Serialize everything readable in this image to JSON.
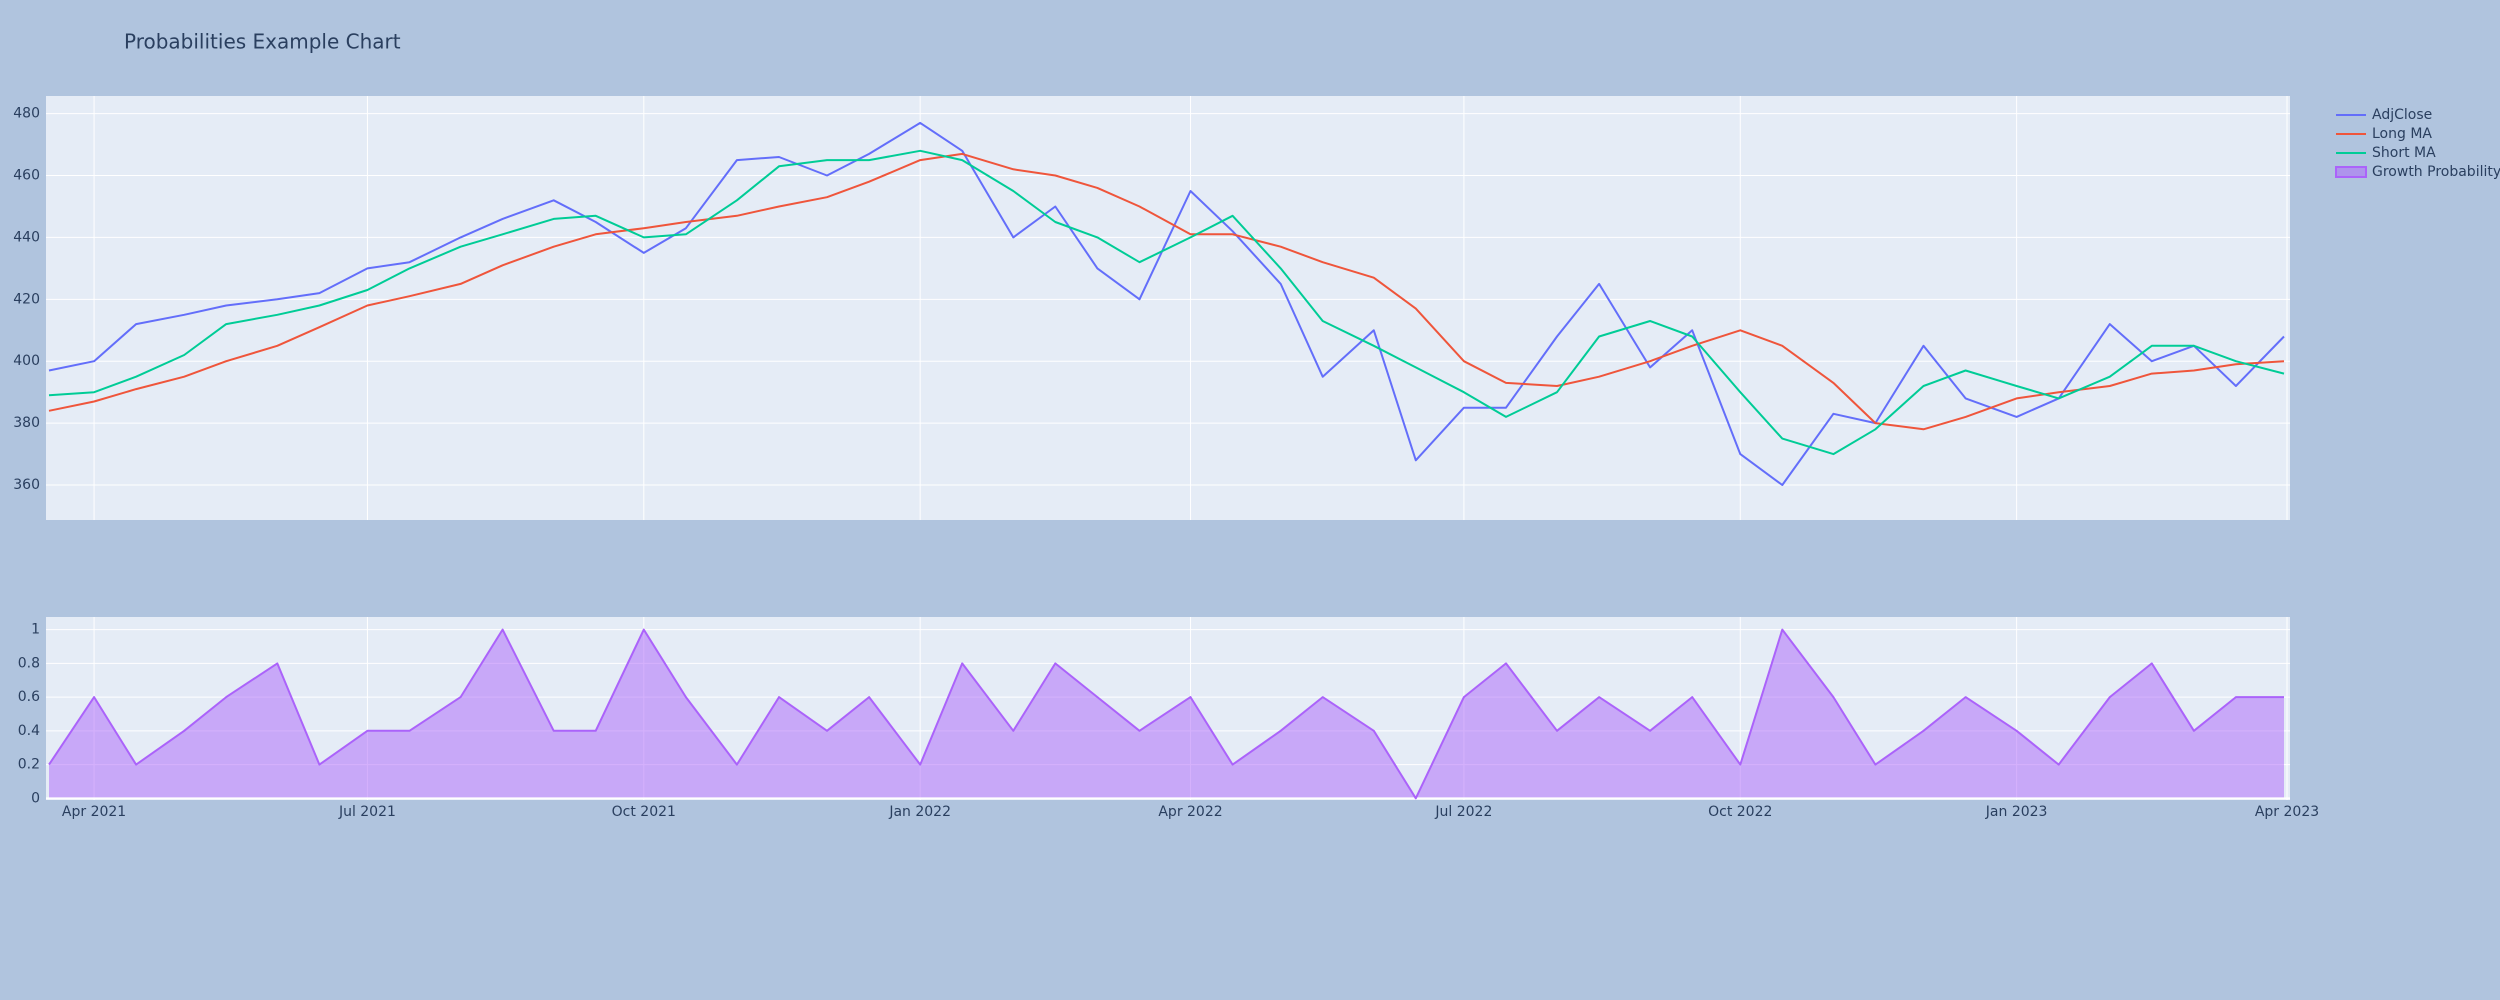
{
  "chart_data": [
    {
      "type": "line",
      "title": "Probabilities Example Chart",
      "x": [
        "2021-03-17",
        "2021-04-01",
        "2021-04-15",
        "2021-05-01",
        "2021-05-15",
        "2021-06-01",
        "2021-06-15",
        "2021-07-01",
        "2021-07-15",
        "2021-08-01",
        "2021-08-15",
        "2021-09-01",
        "2021-09-15",
        "2021-10-01",
        "2021-10-15",
        "2021-11-01",
        "2021-11-15",
        "2021-12-01",
        "2021-12-15",
        "2022-01-01",
        "2022-01-15",
        "2022-02-01",
        "2022-02-15",
        "2022-03-01",
        "2022-03-15",
        "2022-04-01",
        "2022-04-15",
        "2022-05-01",
        "2022-05-15",
        "2022-06-01",
        "2022-06-15",
        "2022-07-01",
        "2022-07-15",
        "2022-08-01",
        "2022-08-15",
        "2022-09-01",
        "2022-09-15",
        "2022-10-01",
        "2022-10-15",
        "2022-11-01",
        "2022-11-15",
        "2022-12-01",
        "2022-12-15",
        "2023-01-01",
        "2023-01-15",
        "2023-02-01",
        "2023-02-15",
        "2023-03-01",
        "2023-03-15",
        "2023-03-31"
      ],
      "series": [
        {
          "name": "AdjClose",
          "color": "#636efa",
          "values": [
            397,
            400,
            412,
            415,
            418,
            420,
            422,
            430,
            432,
            440,
            446,
            452,
            445,
            435,
            443,
            465,
            466,
            460,
            467,
            477,
            468,
            440,
            450,
            430,
            420,
            455,
            442,
            425,
            395,
            410,
            368,
            385,
            385,
            408,
            425,
            398,
            410,
            370,
            360,
            383,
            380,
            405,
            388,
            382,
            388,
            412,
            400,
            405,
            392,
            408
          ]
        },
        {
          "name": "Long MA",
          "color": "#ef553b",
          "values": [
            384,
            387,
            391,
            395,
            400,
            405,
            411,
            418,
            421,
            425,
            431,
            437,
            441,
            443,
            445,
            447,
            450,
            453,
            458,
            465,
            467,
            462,
            460,
            456,
            450,
            441,
            441,
            437,
            432,
            427,
            417,
            400,
            393,
            392,
            395,
            400,
            405,
            410,
            405,
            393,
            380,
            378,
            382,
            388,
            390,
            392,
            396,
            397,
            399,
            400
          ]
        },
        {
          "name": "Short MA",
          "color": "#00cc96",
          "values": [
            389,
            390,
            395,
            402,
            412,
            415,
            418,
            423,
            430,
            437,
            441,
            446,
            447,
            440,
            441,
            452,
            463,
            465,
            465,
            468,
            465,
            455,
            445,
            440,
            432,
            440,
            447,
            430,
            413,
            405,
            398,
            390,
            382,
            390,
            408,
            413,
            408,
            390,
            375,
            370,
            378,
            392,
            397,
            392,
            388,
            395,
            405,
            405,
            400,
            396
          ]
        }
      ],
      "xlim": [
        "2021-03-16",
        "2023-04-02"
      ],
      "ylim": [
        348.7,
        485.7
      ],
      "yticks": [
        360,
        380,
        400,
        420,
        440,
        460,
        480
      ],
      "grid": true,
      "legend": "top-right"
    },
    {
      "type": "area",
      "x": [
        "2021-03-17",
        "2021-04-01",
        "2021-04-15",
        "2021-05-01",
        "2021-05-15",
        "2021-06-01",
        "2021-06-15",
        "2021-07-01",
        "2021-07-15",
        "2021-08-01",
        "2021-08-15",
        "2021-09-01",
        "2021-09-15",
        "2021-10-01",
        "2021-10-15",
        "2021-11-01",
        "2021-11-15",
        "2021-12-01",
        "2021-12-15",
        "2022-01-01",
        "2022-01-15",
        "2022-02-01",
        "2022-02-15",
        "2022-03-01",
        "2022-03-15",
        "2022-04-01",
        "2022-04-15",
        "2022-05-01",
        "2022-05-15",
        "2022-06-01",
        "2022-06-15",
        "2022-07-01",
        "2022-07-15",
        "2022-08-01",
        "2022-08-15",
        "2022-09-01",
        "2022-09-15",
        "2022-10-01",
        "2022-10-15",
        "2022-11-01",
        "2022-11-15",
        "2022-12-01",
        "2022-12-15",
        "2023-01-01",
        "2023-01-15",
        "2023-02-01",
        "2023-02-15",
        "2023-03-01",
        "2023-03-15",
        "2023-03-31"
      ],
      "series": [
        {
          "name": "Growth Probability",
          "color": "#ab63fa",
          "values": [
            0.2,
            0.6,
            0.2,
            0.4,
            0.6,
            0.8,
            0.2,
            0.4,
            0.4,
            0.6,
            1,
            0.4,
            0.4,
            1,
            0.6,
            0.2,
            0.6,
            0.4,
            0.6,
            0.2,
            0.8,
            0.4,
            0.8,
            0.6,
            0.4,
            0.6,
            0.2,
            0.4,
            0.6,
            0.4,
            0,
            0.6,
            0.8,
            0.4,
            0.6,
            0.4,
            0.6,
            0.2,
            1,
            0.6,
            0.2,
            0.4,
            0.6,
            0.4,
            0.2,
            0.6,
            0.8,
            0.4,
            0.6,
            0.6
          ]
        }
      ],
      "xlim": [
        "2021-03-16",
        "2023-04-02"
      ],
      "ylim": [
        -0.01,
        1.075
      ],
      "yticks": [
        0,
        0.2,
        0.4,
        0.6,
        0.8,
        1
      ],
      "xticks": [
        {
          "value": "2021-04-01",
          "label": "Apr 2021"
        },
        {
          "value": "2021-07-01",
          "label": "Jul 2021"
        },
        {
          "value": "2021-10-01",
          "label": "Oct 2021"
        },
        {
          "value": "2022-01-01",
          "label": "Jan 2022"
        },
        {
          "value": "2022-04-01",
          "label": "Apr 2022"
        },
        {
          "value": "2022-07-01",
          "label": "Jul 2022"
        },
        {
          "value": "2022-10-01",
          "label": "Oct 2022"
        },
        {
          "value": "2023-01-01",
          "label": "Jan 2023"
        },
        {
          "value": "2023-04-01",
          "label": "Apr 2023"
        }
      ],
      "grid": true
    }
  ]
}
